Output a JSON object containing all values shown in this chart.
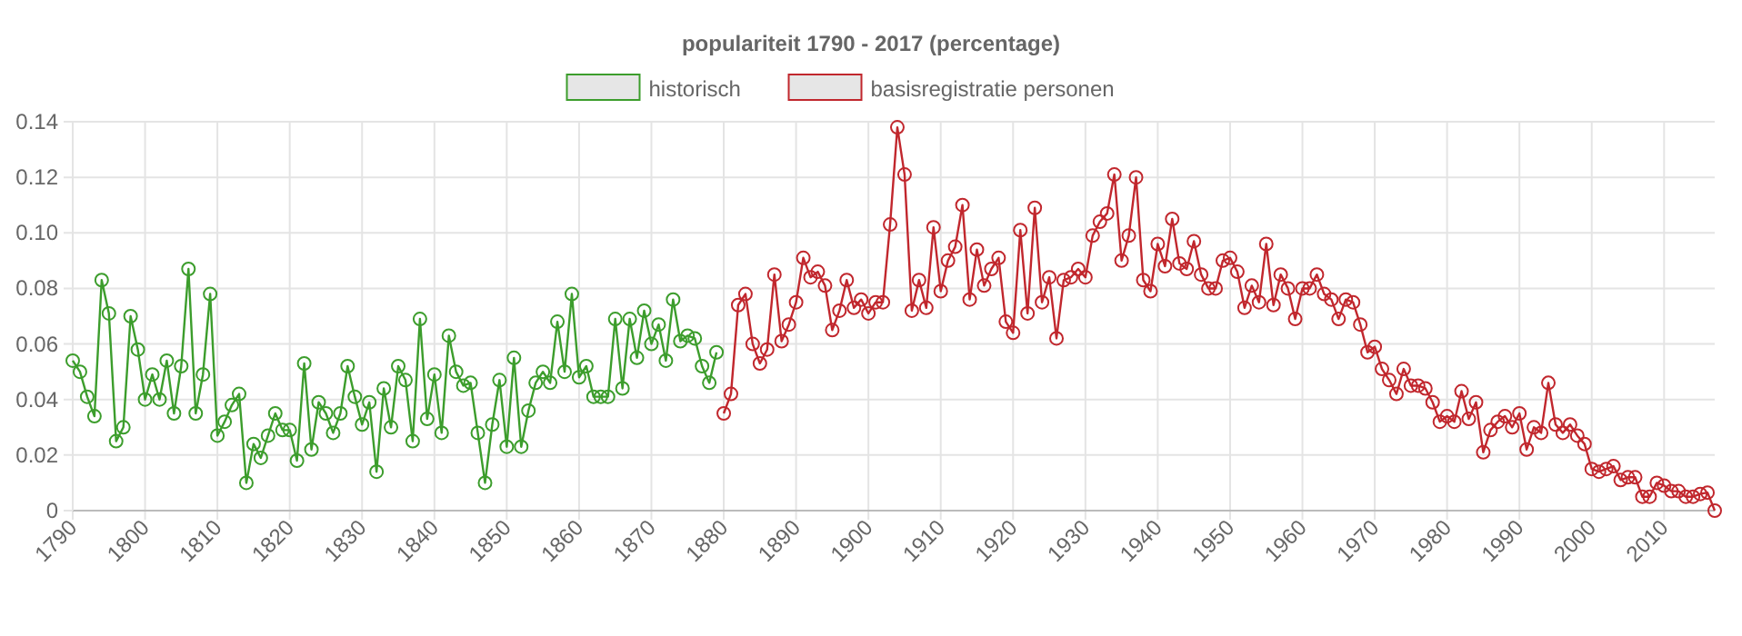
{
  "chart_data": {
    "type": "line",
    "title": "populariteit 1790 - 2017 (percentage)",
    "xlim": [
      1790,
      2017
    ],
    "xticks": [
      1790,
      1800,
      1810,
      1820,
      1830,
      1840,
      1850,
      1860,
      1870,
      1880,
      1890,
      1900,
      1910,
      1920,
      1930,
      1940,
      1950,
      1960,
      1970,
      1980,
      1990,
      2000,
      2010
    ],
    "ylim": [
      0,
      0.14
    ],
    "yticks": [
      0,
      0.02,
      0.04,
      0.06,
      0.08,
      {
        "value": 0.1,
        "label": "0.10"
      },
      0.12,
      0.14
    ],
    "grid": true,
    "legend": "top",
    "marker": "circle",
    "line_style": "solid",
    "series": [
      {
        "name": "historisch",
        "color": "#3c9d2c",
        "x": [
          1790,
          1791,
          1792,
          1793,
          1794,
          1795,
          1796,
          1797,
          1798,
          1799,
          1800,
          1801,
          1802,
          1803,
          1804,
          1805,
          1806,
          1807,
          1808,
          1809,
          1810,
          1811,
          1812,
          1813,
          1814,
          1815,
          1816,
          1817,
          1818,
          1819,
          1820,
          1821,
          1822,
          1823,
          1824,
          1825,
          1826,
          1827,
          1828,
          1829,
          1830,
          1831,
          1832,
          1833,
          1834,
          1835,
          1836,
          1837,
          1838,
          1839,
          1840,
          1841,
          1842,
          1843,
          1844,
          1845,
          1846,
          1847,
          1848,
          1849,
          1850,
          1851,
          1852,
          1853,
          1854,
          1855,
          1856,
          1857,
          1858,
          1859,
          1860,
          1861,
          1862,
          1863,
          1864,
          1865,
          1866,
          1867,
          1868,
          1869,
          1870,
          1871,
          1872,
          1873,
          1874,
          1875,
          1876,
          1877,
          1878,
          1879
        ],
        "values": [
          0.054,
          0.05,
          0.041,
          0.034,
          0.083,
          0.071,
          0.025,
          0.03,
          0.07,
          0.058,
          0.04,
          0.049,
          0.04,
          0.054,
          0.035,
          0.052,
          0.087,
          0.035,
          0.049,
          0.078,
          0.027,
          0.032,
          0.038,
          0.042,
          0.01,
          0.024,
          0.019,
          0.027,
          0.035,
          0.029,
          0.029,
          0.018,
          0.053,
          0.022,
          0.039,
          0.035,
          0.028,
          0.035,
          0.052,
          0.041,
          0.031,
          0.039,
          0.014,
          0.044,
          0.03,
          0.052,
          0.047,
          0.025,
          0.069,
          0.033,
          0.049,
          0.028,
          0.063,
          0.05,
          0.045,
          0.046,
          0.028,
          0.01,
          0.031,
          0.047,
          0.023,
          0.055,
          0.023,
          0.036,
          0.046,
          0.05,
          0.046,
          0.068,
          0.05,
          0.078,
          0.048,
          0.052,
          0.041,
          0.041,
          0.041,
          0.069,
          0.044,
          0.069,
          0.055,
          0.072,
          0.06,
          0.067,
          0.054,
          0.076,
          0.061,
          0.063,
          0.062,
          0.052,
          0.046,
          0.057
        ]
      },
      {
        "name": "basisregistratie personen",
        "color": "#c1272d",
        "x": [
          1880,
          1881,
          1882,
          1883,
          1884,
          1885,
          1886,
          1887,
          1888,
          1889,
          1890,
          1891,
          1892,
          1893,
          1894,
          1895,
          1896,
          1897,
          1898,
          1899,
          1900,
          1901,
          1902,
          1903,
          1904,
          1905,
          1906,
          1907,
          1908,
          1909,
          1910,
          1911,
          1912,
          1913,
          1914,
          1915,
          1916,
          1917,
          1918,
          1919,
          1920,
          1921,
          1922,
          1923,
          1924,
          1925,
          1926,
          1927,
          1928,
          1929,
          1930,
          1931,
          1932,
          1933,
          1934,
          1935,
          1936,
          1937,
          1938,
          1939,
          1940,
          1941,
          1942,
          1943,
          1944,
          1945,
          1946,
          1947,
          1948,
          1949,
          1950,
          1951,
          1952,
          1953,
          1954,
          1955,
          1956,
          1957,
          1958,
          1959,
          1960,
          1961,
          1962,
          1963,
          1964,
          1965,
          1966,
          1967,
          1968,
          1969,
          1970,
          1971,
          1972,
          1973,
          1974,
          1975,
          1976,
          1977,
          1978,
          1979,
          1980,
          1981,
          1982,
          1983,
          1984,
          1985,
          1986,
          1987,
          1988,
          1989,
          1990,
          1991,
          1992,
          1993,
          1994,
          1995,
          1996,
          1997,
          1998,
          1999,
          2000,
          2001,
          2002,
          2003,
          2004,
          2005,
          2006,
          2007,
          2008,
          2009,
          2010,
          2011,
          2012,
          2013,
          2014,
          2015,
          2016,
          2017
        ],
        "values": [
          0.035,
          0.042,
          0.074,
          0.078,
          0.06,
          0.053,
          0.058,
          0.085,
          0.061,
          0.067,
          0.075,
          0.091,
          0.084,
          0.086,
          0.081,
          0.065,
          0.072,
          0.083,
          0.073,
          0.076,
          0.071,
          0.075,
          0.075,
          0.103,
          0.138,
          0.121,
          0.072,
          0.083,
          0.073,
          0.102,
          0.079,
          0.09,
          0.095,
          0.11,
          0.076,
          0.094,
          0.081,
          0.087,
          0.091,
          0.068,
          0.064,
          0.101,
          0.071,
          0.109,
          0.075,
          0.084,
          0.062,
          0.083,
          0.084,
          0.087,
          0.084,
          0.099,
          0.104,
          0.107,
          0.121,
          0.09,
          0.099,
          0.12,
          0.083,
          0.079,
          0.096,
          0.088,
          0.105,
          0.089,
          0.087,
          0.097,
          0.085,
          0.08,
          0.08,
          0.09,
          0.091,
          0.086,
          0.073,
          0.081,
          0.075,
          0.096,
          0.074,
          0.085,
          0.08,
          0.069,
          0.08,
          0.08,
          0.085,
          0.078,
          0.076,
          0.069,
          0.076,
          0.075,
          0.067,
          0.057,
          0.059,
          0.051,
          0.047,
          0.042,
          0.051,
          0.045,
          0.045,
          0.044,
          0.039,
          0.032,
          0.034,
          0.032,
          0.043,
          0.033,
          0.039,
          0.021,
          0.029,
          0.032,
          0.034,
          0.03,
          0.035,
          0.022,
          0.03,
          0.028,
          0.046,
          0.031,
          0.028,
          0.031,
          0.027,
          0.024,
          0.015,
          0.014,
          0.015,
          0.016,
          0.011,
          0.012,
          0.012,
          0.005,
          0.005,
          0.01,
          0.009,
          0.007,
          0.007,
          0.005,
          0.005,
          0.006,
          0.0065,
          0.0
        ]
      }
    ]
  }
}
